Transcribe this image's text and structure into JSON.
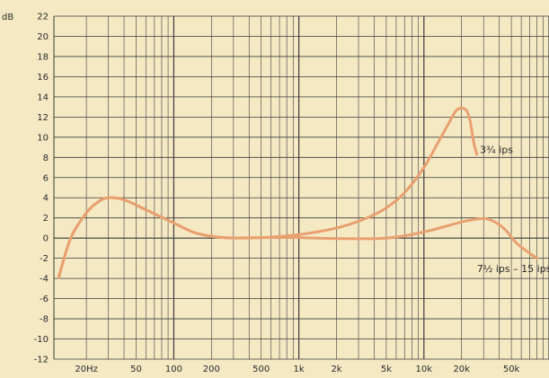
{
  "chart_data": {
    "type": "line",
    "title": "",
    "xlabel": "",
    "ylabel": "dB",
    "x_scale": "log",
    "xlim": [
      11,
      100000
    ],
    "ylim": [
      -12,
      22
    ],
    "grid": true,
    "y_ticks": [
      22,
      20,
      18,
      16,
      14,
      12,
      10,
      8,
      6,
      4,
      2,
      0,
      -2,
      -4,
      -6,
      -8,
      -10,
      -12
    ],
    "y_tick_labels": [
      "22",
      "20",
      "18",
      "16",
      "14",
      "12",
      "10",
      "8",
      "6",
      "4",
      "2",
      "0",
      "-2",
      "-4",
      "-6",
      "-8",
      "-10",
      "-12"
    ],
    "x_ticks": [
      20,
      50,
      100,
      200,
      500,
      1000,
      2000,
      5000,
      10000,
      20000,
      50000
    ],
    "x_tick_labels": [
      "20Hz",
      "50",
      "100",
      "200",
      "500",
      "1k",
      "2k",
      "5k",
      "10k",
      "20k",
      "50k"
    ],
    "series": [
      {
        "name": "3¾ ips",
        "color": "#e8a070",
        "x": [
          12,
          15,
          20,
          25,
          30,
          40,
          60,
          100,
          150,
          250,
          500,
          1000,
          2000,
          3500,
          5000,
          7000,
          10000,
          13000,
          16000,
          18000,
          20000,
          22000,
          23500,
          25000,
          26500
        ],
        "y": [
          -3.9,
          0,
          2.5,
          3.6,
          4.0,
          3.8,
          2.8,
          1.5,
          0.5,
          0.05,
          0.05,
          0.35,
          1.0,
          2.0,
          3.0,
          4.5,
          7.0,
          9.5,
          11.5,
          12.6,
          12.9,
          12.6,
          11.5,
          9.5,
          8.3
        ]
      },
      {
        "name": "7½ ips – 15 ips",
        "color": "#e8a070",
        "x": [
          12,
          15,
          20,
          25,
          30,
          40,
          60,
          100,
          150,
          250,
          500,
          1000,
          2000,
          5000,
          10000,
          20000,
          27000,
          32000,
          38000,
          45000,
          55000,
          70000,
          80000
        ],
        "y": [
          -3.9,
          0,
          2.5,
          3.6,
          4.0,
          3.8,
          2.8,
          1.5,
          0.5,
          0.05,
          0.05,
          0.05,
          -0.05,
          0.0,
          0.6,
          1.6,
          1.9,
          1.9,
          1.5,
          0.8,
          -0.5,
          -1.5,
          -2.0
        ]
      }
    ],
    "annotations": [
      {
        "text": "3¾ ips",
        "x": 28000,
        "y": 8.8
      },
      {
        "text": "7½ ips – 15 ips",
        "x": 26500,
        "y": -3.0
      }
    ]
  }
}
